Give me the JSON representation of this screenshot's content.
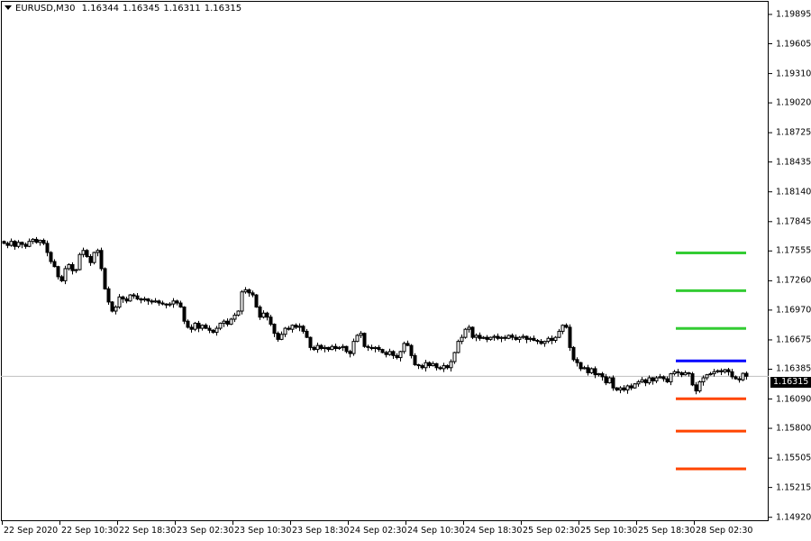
{
  "header": {
    "symbol": "EURUSD,M30",
    "open": "1.16344",
    "high": "1.16345",
    "low": "1.16311",
    "close": "1.16315"
  },
  "price_axis": {
    "labels": [
      "1.19895",
      "1.19605",
      "1.19310",
      "1.19020",
      "1.18725",
      "1.18435",
      "1.18140",
      "1.17845",
      "1.17555",
      "1.17260",
      "1.16970",
      "1.16675",
      "1.16385",
      "1.16090",
      "1.15800",
      "1.15505",
      "1.15215",
      "1.14920"
    ],
    "current_price": "1.16315"
  },
  "time_axis": {
    "labels": [
      "22 Sep 2020",
      "22 Sep 10:30",
      "22 Sep 18:30",
      "23 Sep 02:30",
      "23 Sep 10:30",
      "23 Sep 18:30",
      "24 Sep 02:30",
      "24 Sep 10:30",
      "24 Sep 18:30",
      "25 Sep 02:30",
      "25 Sep 10:30",
      "25 Sep 18:30",
      "28 Sep 02:30"
    ]
  },
  "levels": [
    {
      "price": 1.17536,
      "color": "#33cc33"
    },
    {
      "price": 1.17162,
      "color": "#33cc33"
    },
    {
      "price": 1.16788,
      "color": "#33cc33"
    },
    {
      "price": 1.16467,
      "color": "#0000ff"
    },
    {
      "price": 1.16093,
      "color": "#ff4500"
    },
    {
      "price": 1.15773,
      "color": "#ff4500"
    },
    {
      "price": 1.15399,
      "color": "#ff4500"
    }
  ],
  "colors": {
    "bull_body": "#ffffff",
    "bear_body": "#000000",
    "outline": "#000000",
    "price_line": "#c0c0c0"
  },
  "closes": [
    1.1763,
    1.1761,
    1.1765,
    1.176,
    1.1764,
    1.1762,
    1.176,
    1.1765,
    1.1767,
    1.1764,
    1.1766,
    1.1763,
    1.1754,
    1.1745,
    1.174,
    1.173,
    1.1726,
    1.1738,
    1.1742,
    1.1736,
    1.1737,
    1.1752,
    1.1756,
    1.175,
    1.1744,
    1.1754,
    1.1756,
    1.1738,
    1.1718,
    1.1705,
    1.1696,
    1.17,
    1.171,
    1.1708,
    1.1706,
    1.1712,
    1.1711,
    1.1708,
    1.1707,
    1.1708,
    1.1706,
    1.1705,
    1.1706,
    1.1704,
    1.1703,
    1.1702,
    1.1703,
    1.1706,
    1.1704,
    1.17,
    1.1686,
    1.168,
    1.1678,
    1.1684,
    1.1679,
    1.1682,
    1.1679,
    1.1677,
    1.1675,
    1.1679,
    1.1684,
    1.1686,
    1.1683,
    1.1688,
    1.1692,
    1.1696,
    1.1715,
    1.1717,
    1.1714,
    1.1712,
    1.17,
    1.169,
    1.1694,
    1.169,
    1.1683,
    1.1674,
    1.1668,
    1.1673,
    1.1679,
    1.1678,
    1.1682,
    1.168,
    1.1681,
    1.1676,
    1.167,
    1.166,
    1.1658,
    1.1662,
    1.1659,
    1.166,
    1.1658,
    1.1661,
    1.1659,
    1.166,
    1.1661,
    1.1656,
    1.1654,
    1.1666,
    1.1672,
    1.1674,
    1.1661,
    1.166,
    1.1659,
    1.166,
    1.1658,
    1.1655,
    1.1653,
    1.1656,
    1.1652,
    1.165,
    1.1656,
    1.1664,
    1.1662,
    1.1652,
    1.1643,
    1.1642,
    1.164,
    1.1645,
    1.1642,
    1.1644,
    1.164,
    1.1639,
    1.1642,
    1.164,
    1.1646,
    1.1655,
    1.1666,
    1.167,
    1.1678,
    1.168,
    1.167,
    1.1672,
    1.1669,
    1.167,
    1.1668,
    1.167,
    1.1671,
    1.1669,
    1.167,
    1.1669,
    1.1672,
    1.167,
    1.1668,
    1.167,
    1.1671,
    1.1668,
    1.1669,
    1.1667,
    1.1666,
    1.1664,
    1.1666,
    1.1669,
    1.1667,
    1.167,
    1.1676,
    1.1682,
    1.168,
    1.166,
    1.1648,
    1.1645,
    1.1639,
    1.164,
    1.1635,
    1.1639,
    1.1633,
    1.1634,
    1.1631,
    1.1625,
    1.163,
    1.162,
    1.1618,
    1.162,
    1.1618,
    1.1622,
    1.162,
    1.1624,
    1.1626,
    1.1628,
    1.1625,
    1.163,
    1.1627,
    1.163,
    1.1631,
    1.1629,
    1.1626,
    1.1634,
    1.1636,
    1.1635,
    1.1633,
    1.1635,
    1.1634,
    1.1623,
    1.1617,
    1.1626,
    1.163,
    1.1633,
    1.1634,
    1.1636,
    1.1637,
    1.1636,
    1.1638,
    1.1636,
    1.1631,
    1.1629,
    1.1628,
    1.16344,
    1.16315
  ]
}
